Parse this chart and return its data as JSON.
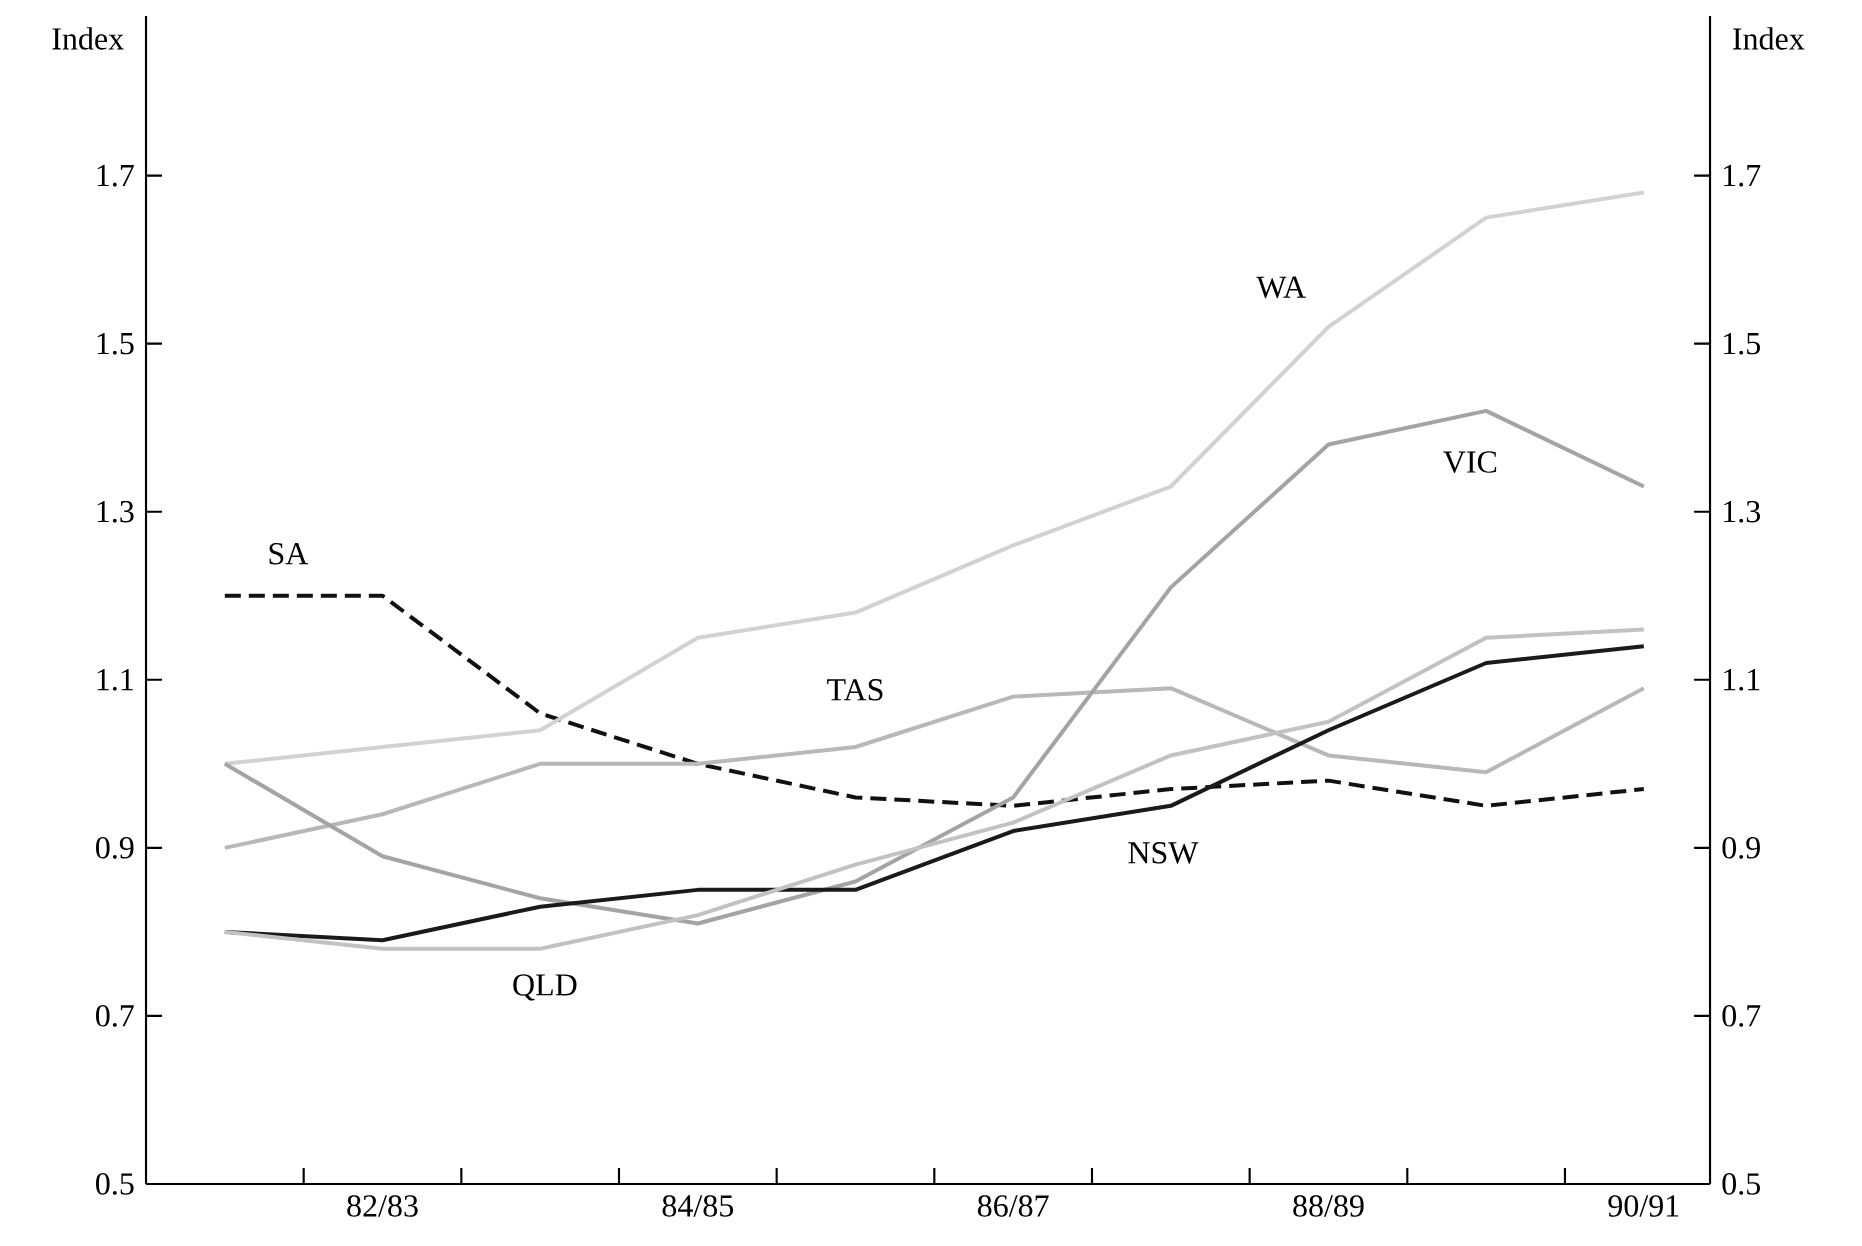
{
  "chart_data": {
    "type": "line",
    "ylabel": "Index",
    "y2label": "Index",
    "categories": [
      null,
      "82/83",
      null,
      "84/85",
      null,
      "86/87",
      null,
      "88/89",
      null,
      "90/91"
    ],
    "ylim": [
      0.5,
      1.89
    ],
    "yticks": [
      0.5,
      0.7,
      0.9,
      1.1,
      1.3,
      1.5,
      1.7
    ],
    "y2lim": [
      0.5,
      1.89
    ],
    "y2ticks": [
      0.5,
      0.7,
      0.9,
      1.1,
      1.3,
      1.5,
      1.7
    ],
    "grid": false,
    "legend": false,
    "marker": "none",
    "line_style": "solid",
    "series": [
      {
        "name": "SA",
        "color": "#111111",
        "line_style": "dashed",
        "values": [
          1.2,
          1.2,
          1.06,
          1.0,
          0.96,
          0.95,
          0.97,
          0.98,
          0.95,
          0.97
        ]
      },
      {
        "name": "TAS",
        "color": "#b8b8b8",
        "values": [
          0.9,
          0.94,
          1.0,
          1.0,
          1.02,
          1.08,
          1.09,
          1.01,
          0.99,
          1.09
        ]
      },
      {
        "name": "WA",
        "color": "#d2d2d2",
        "values": [
          1.0,
          1.02,
          1.04,
          1.15,
          1.18,
          1.26,
          1.33,
          1.52,
          1.65,
          1.68
        ]
      },
      {
        "name": "VIC",
        "color": "#a4a4a4",
        "values": [
          1.0,
          0.89,
          0.84,
          0.81,
          0.86,
          0.96,
          1.21,
          1.38,
          1.42,
          1.33
        ]
      },
      {
        "name": "NSW",
        "color": "#1a1a1a",
        "values": [
          0.8,
          0.79,
          0.83,
          0.85,
          0.85,
          0.92,
          0.95,
          1.04,
          1.12,
          1.14
        ]
      },
      {
        "name": "QLD",
        "color": "#c2c2c2",
        "values": [
          0.8,
          0.78,
          0.78,
          0.82,
          0.88,
          0.93,
          1.01,
          1.05,
          1.15,
          1.16
        ]
      }
    ]
  }
}
